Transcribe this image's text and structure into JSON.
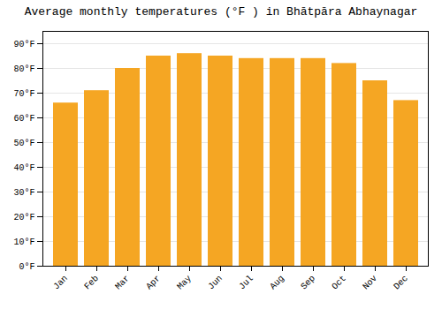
{
  "chart_data": {
    "type": "bar",
    "title": "Average monthly temperatures (°F ) in Bhātpāra Abhaynagar",
    "categories": [
      "Jan",
      "Feb",
      "Mar",
      "Apr",
      "May",
      "Jun",
      "Jul",
      "Aug",
      "Sep",
      "Oct",
      "Nov",
      "Dec"
    ],
    "values": [
      66,
      71,
      80,
      85,
      86,
      85,
      84,
      84,
      84,
      82,
      75,
      67
    ],
    "color": "#F5A623",
    "ylim": [
      0,
      95
    ],
    "yticks": [
      {
        "value": 0,
        "label": "0°F"
      },
      {
        "value": 10,
        "label": "10°F"
      },
      {
        "value": 20,
        "label": "20°F"
      },
      {
        "value": 30,
        "label": "30°F"
      },
      {
        "value": 40,
        "label": "40°F"
      },
      {
        "value": 50,
        "label": "50°F"
      },
      {
        "value": 60,
        "label": "60°F"
      },
      {
        "value": 70,
        "label": "70°F"
      },
      {
        "value": 80,
        "label": "80°F"
      },
      {
        "value": 90,
        "label": "90°F"
      }
    ],
    "grid": true
  }
}
